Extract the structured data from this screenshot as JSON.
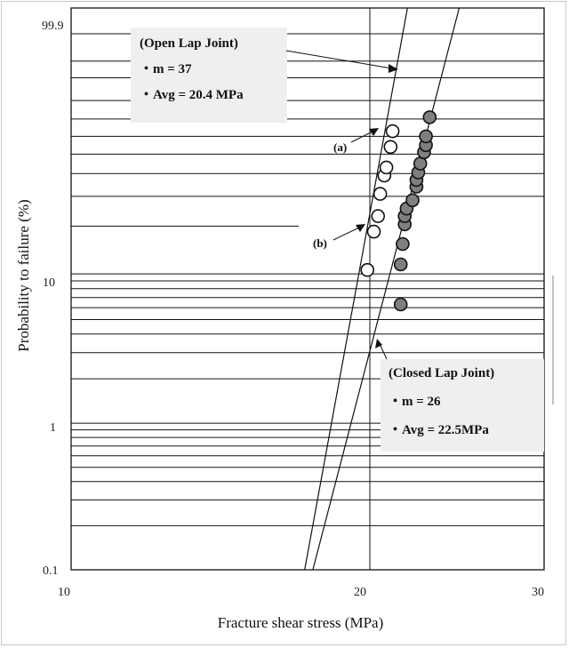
{
  "chart_data": {
    "type": "scatter",
    "xlabel": "Fracture shear stress (MPa)",
    "ylabel": "Probability to failure (%)",
    "x_ticks": [
      "10",
      "20",
      "30"
    ],
    "y_ticks": [
      "0.1",
      "1",
      "10",
      "99.9"
    ],
    "xlim": [
      10,
      30
    ],
    "x_scale": "log",
    "y_scale": "weibull probability",
    "grid": "horizontal lines at probability levels",
    "series": [
      {
        "name": "Open Lap Joint",
        "marker": "open circle",
        "fill": "#ffffff",
        "x": [
          19.9,
          20.2,
          20.4,
          20.5,
          20.7,
          20.8,
          21.0,
          21.1
        ],
        "y": [
          10.6,
          18.5,
          23.0,
          31.0,
          39.0,
          43.0,
          54.0,
          63.0
        ]
      },
      {
        "name": "Closed Lap Joint",
        "marker": "filled circle",
        "fill": "#7f7f7f",
        "x": [
          21.5,
          21.5,
          21.6,
          21.7,
          21.7,
          21.8,
          22.1,
          22.3,
          22.3,
          22.4,
          22.5,
          22.7,
          22.8,
          22.8,
          23.0
        ],
        "y": [
          6.3,
          11.5,
          15.5,
          20.5,
          23.0,
          25.5,
          28.5,
          34.0,
          37.0,
          40.5,
          45.0,
          51.0,
          55.0,
          60.0,
          71.0
        ]
      }
    ],
    "fit_lines": [
      {
        "name": "Open Lap Joint",
        "m": 37,
        "avg": 20.4
      },
      {
        "name": "Closed Lap Joint",
        "m": 26,
        "avg": 22.5
      }
    ],
    "annotations": {
      "open": {
        "title": "(Open Lap Joint)",
        "m_line": "・m = 37",
        "avg_line": "・Avg = 20.4 MPa"
      },
      "closed": {
        "title": "(Closed Lap Joint)",
        "m_line": "・m = 26",
        "avg_line": "・Avg = 22.5MPa"
      },
      "label_a": "(a)",
      "label_b": "(b)"
    }
  },
  "colors": {
    "line": "#111111",
    "annotation_box": "#efefef",
    "open_fill": "#ffffff",
    "closed_fill": "#7f7f7f"
  }
}
